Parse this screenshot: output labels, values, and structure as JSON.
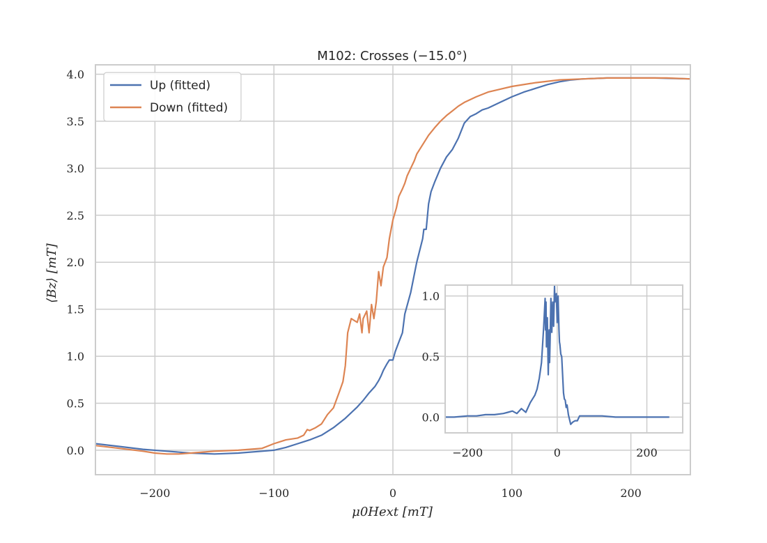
{
  "chart_data": [
    {
      "type": "line",
      "title": "M102: Crosses (−15.0°)",
      "xlabel": "μ0Hext [mT]",
      "ylabel": "⟨Bz⟩ [mT]",
      "xlim": [
        -250,
        250
      ],
      "ylim": [
        -0.26,
        4.1
      ],
      "xticks": [
        -200,
        -100,
        0,
        100,
        200
      ],
      "xtick_labels": [
        "−200",
        "−100",
        "0",
        "100",
        "200"
      ],
      "yticks": [
        0.0,
        0.5,
        1.0,
        1.5,
        2.0,
        2.5,
        3.0,
        3.5,
        4.0
      ],
      "ytick_labels": [
        "0.0",
        "0.5",
        "1.0",
        "1.5",
        "2.0",
        "2.5",
        "3.0",
        "3.5",
        "4.0"
      ],
      "grid": true,
      "legend_position": "top-left",
      "series": [
        {
          "name": "Up (fitted)",
          "color": "#4c72b0",
          "x": [
            -250,
            -230,
            -210,
            -190,
            -170,
            -150,
            -130,
            -110,
            -100,
            -90,
            -80,
            -70,
            -60,
            -50,
            -40,
            -30,
            -25,
            -20,
            -15,
            -12,
            -10,
            -8,
            -5,
            -3,
            0,
            2,
            5,
            8,
            10,
            15,
            20,
            25,
            26,
            28,
            30,
            32,
            35,
            40,
            45,
            50,
            55,
            60,
            65,
            70,
            75,
            80,
            90,
            100,
            110,
            120,
            130,
            140,
            150,
            160,
            180,
            200,
            220,
            250
          ],
          "y": [
            0.07,
            0.04,
            0.01,
            -0.01,
            -0.03,
            -0.04,
            -0.03,
            -0.01,
            0.0,
            0.03,
            0.07,
            0.11,
            0.16,
            0.24,
            0.34,
            0.46,
            0.53,
            0.61,
            0.68,
            0.74,
            0.79,
            0.85,
            0.92,
            0.96,
            0.96,
            1.05,
            1.15,
            1.25,
            1.45,
            1.68,
            2.0,
            2.25,
            2.35,
            2.35,
            2.62,
            2.75,
            2.85,
            3.0,
            3.12,
            3.2,
            3.32,
            3.48,
            3.55,
            3.58,
            3.62,
            3.64,
            3.7,
            3.76,
            3.81,
            3.85,
            3.89,
            3.92,
            3.94,
            3.95,
            3.96,
            3.96,
            3.96,
            3.95
          ]
        },
        {
          "name": "Down (fitted)",
          "color": "#dd8452",
          "x": [
            -250,
            -230,
            -210,
            -200,
            -190,
            -180,
            -170,
            -160,
            -150,
            -130,
            -110,
            -100,
            -90,
            -80,
            -75,
            -72,
            -70,
            -65,
            -60,
            -55,
            -50,
            -45,
            -42,
            -40,
            -38,
            -35,
            -30,
            -28,
            -26,
            -25,
            -22,
            -20,
            -18,
            -16,
            -14,
            -12,
            -10,
            -8,
            -5,
            -3,
            0,
            3,
            5,
            8,
            10,
            12,
            15,
            18,
            20,
            25,
            30,
            35,
            40,
            45,
            50,
            55,
            60,
            70,
            80,
            100,
            120,
            140,
            160,
            180,
            200,
            230,
            250
          ],
          "y": [
            0.05,
            0.02,
            -0.01,
            -0.03,
            -0.04,
            -0.04,
            -0.03,
            -0.02,
            -0.01,
            0.0,
            0.02,
            0.07,
            0.11,
            0.13,
            0.16,
            0.22,
            0.21,
            0.24,
            0.28,
            0.38,
            0.45,
            0.62,
            0.73,
            0.9,
            1.25,
            1.4,
            1.36,
            1.45,
            1.25,
            1.4,
            1.48,
            1.25,
            1.55,
            1.4,
            1.58,
            1.9,
            1.75,
            1.95,
            2.05,
            2.25,
            2.45,
            2.58,
            2.7,
            2.78,
            2.84,
            2.92,
            3.0,
            3.08,
            3.15,
            3.25,
            3.35,
            3.43,
            3.5,
            3.56,
            3.61,
            3.66,
            3.7,
            3.76,
            3.81,
            3.87,
            3.91,
            3.94,
            3.95,
            3.96,
            3.96,
            3.96,
            3.95
          ]
        }
      ]
    },
    {
      "type": "line",
      "xlim": [
        -250,
        280
      ],
      "ylim": [
        -0.13,
        1.09
      ],
      "xticks": [
        -200,
        0,
        200
      ],
      "xtick_labels": [
        "−200",
        "0",
        "200"
      ],
      "yticks": [
        0.0,
        0.5,
        1.0
      ],
      "ytick_labels": [
        "0.0",
        "0.5",
        "1.0"
      ],
      "grid": true,
      "series": [
        {
          "color": "#4c72b0",
          "x": [
            -250,
            -230,
            -200,
            -180,
            -160,
            -140,
            -120,
            -110,
            -100,
            -90,
            -80,
            -70,
            -60,
            -50,
            -45,
            -40,
            -35,
            -30,
            -27,
            -26,
            -25,
            -24,
            -22,
            -20,
            -18,
            -17,
            -16,
            -14,
            -12,
            -10,
            -8,
            -6,
            -5,
            -4,
            -3,
            -2,
            0,
            2,
            4,
            5,
            6,
            8,
            10,
            12,
            14,
            16,
            18,
            20,
            22,
            25,
            30,
            35,
            40,
            45,
            50,
            60,
            80,
            100,
            130,
            160,
            200,
            240,
            250
          ],
          "y": [
            0.0,
            0.0,
            0.01,
            0.01,
            0.02,
            0.02,
            0.03,
            0.04,
            0.05,
            0.03,
            0.07,
            0.04,
            0.12,
            0.18,
            0.23,
            0.32,
            0.45,
            0.75,
            0.98,
            0.72,
            0.95,
            0.58,
            0.82,
            0.35,
            0.72,
            0.45,
            0.62,
            0.98,
            0.7,
            0.95,
            0.75,
            1.08,
            0.95,
            1.0,
            1.0,
            1.02,
            0.78,
            1.0,
            0.72,
            0.62,
            0.6,
            0.52,
            0.5,
            0.35,
            0.2,
            0.15,
            0.14,
            0.08,
            0.1,
            0.02,
            -0.06,
            -0.04,
            -0.03,
            -0.03,
            0.01,
            0.01,
            0.01,
            0.01,
            0.0,
            0.0,
            0.0,
            0.0,
            0.0
          ]
        }
      ]
    }
  ],
  "legend": {
    "items": [
      {
        "label": "Up (fitted)",
        "color": "#4c72b0"
      },
      {
        "label": "Down (fitted)",
        "color": "#dd8452"
      }
    ]
  }
}
